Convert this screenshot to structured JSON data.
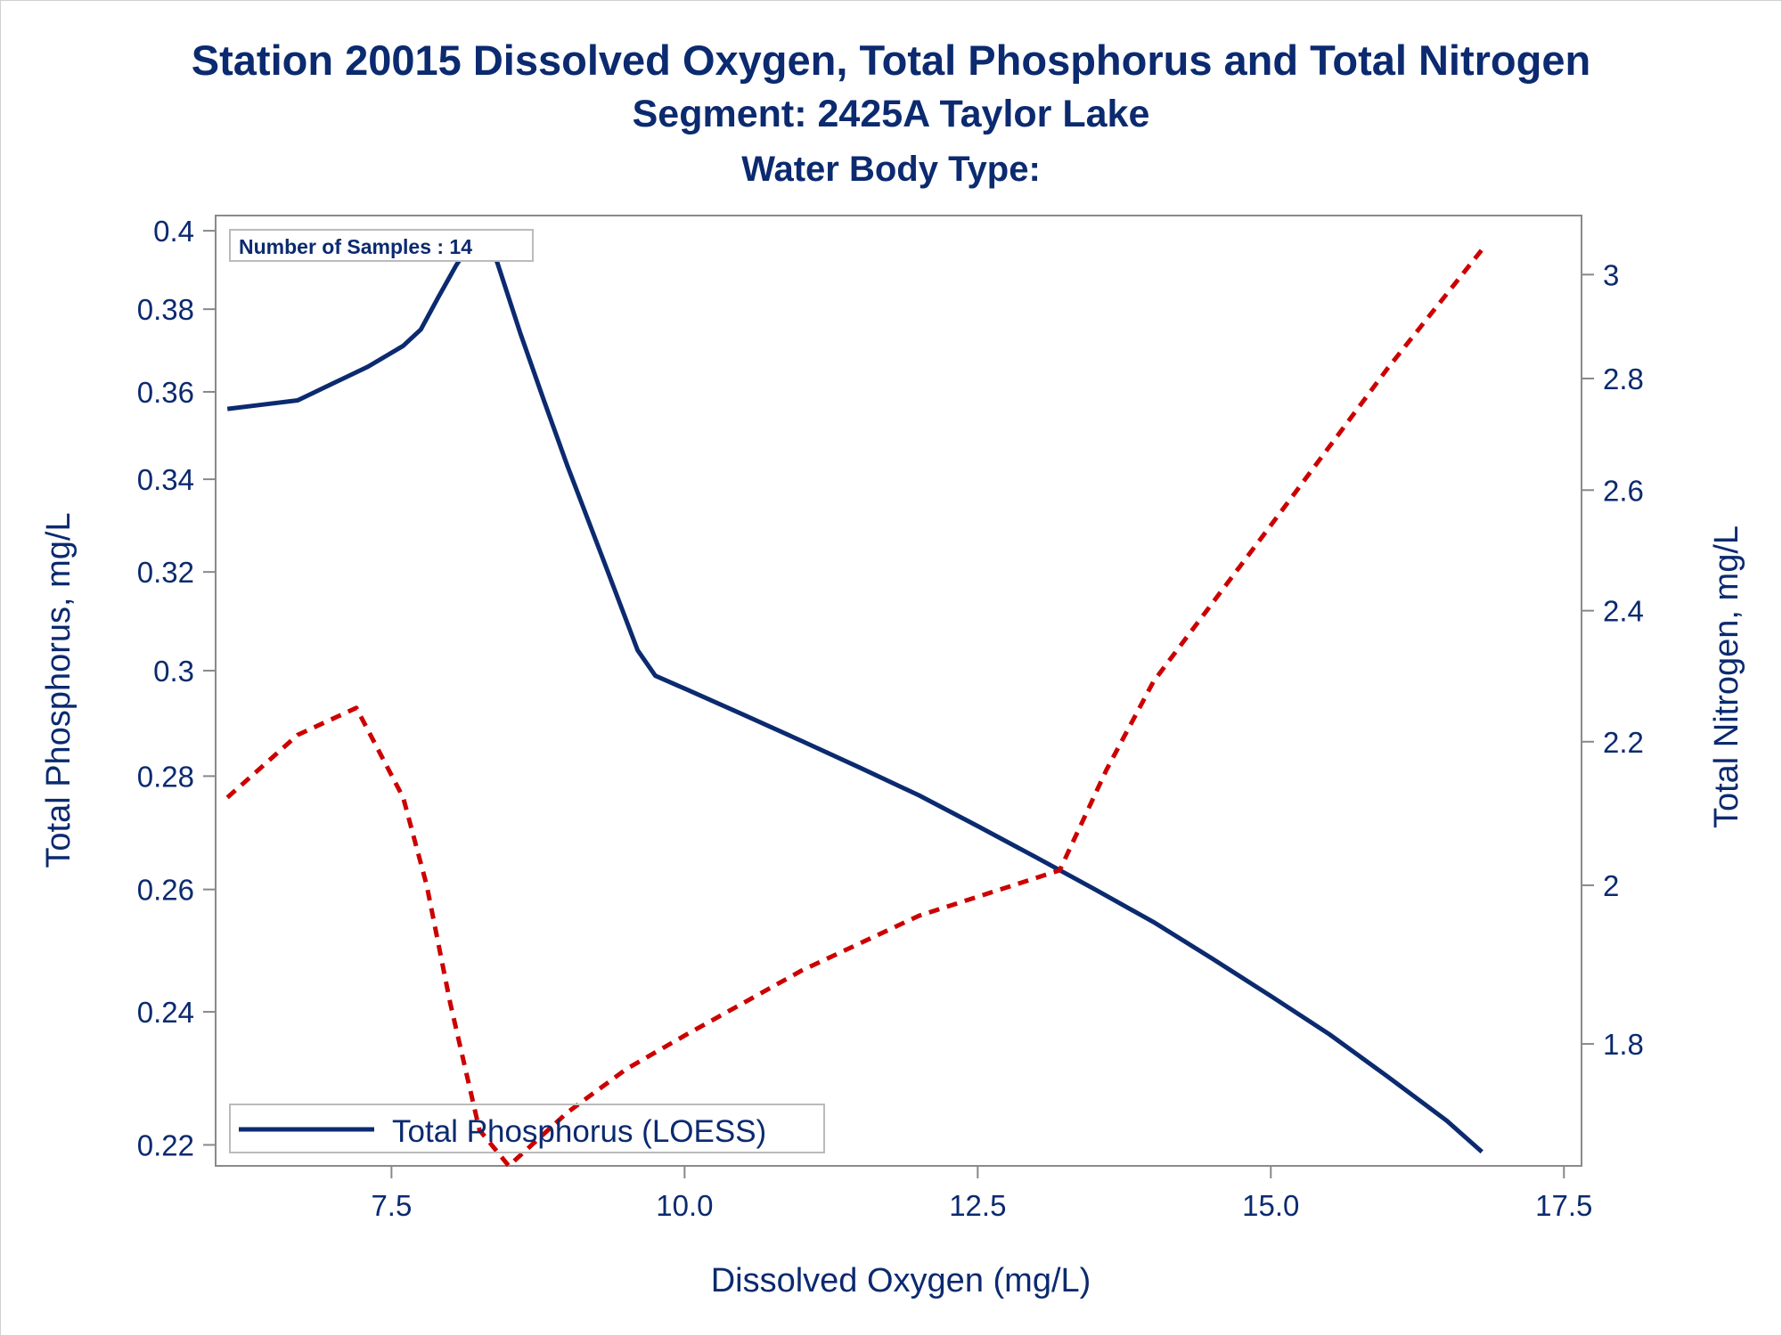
{
  "titles": {
    "line1": "Station 20015  Dissolved Oxygen, Total Phosphorus and Total Nitrogen",
    "line2": "Segment: 2425A  Taylor Lake",
    "line3": "Water Body Type:"
  },
  "inset_label": "Number of Samples : 14",
  "legend": {
    "phosphorus": "Total Phosphorus (LOESS)"
  },
  "colors": {
    "phosphorus": "#0b2a6f",
    "nitrogen": "#cc0000",
    "text": "#0b2a6f",
    "axis": "#888888"
  },
  "chart_data": {
    "type": "line",
    "xlabel": "Dissolved Oxygen (mg/L)",
    "ylabel": "Total Phosphorus, mg/L",
    "y2label": "Total Nitrogen, mg/L",
    "xlim": [
      6.0,
      17.65
    ],
    "ylim": [
      0.217,
      0.404
    ],
    "y2lim": [
      1.66,
      3.12
    ],
    "xticks": [
      7.5,
      10.0,
      12.5,
      15.0,
      17.5
    ],
    "xtick_labels": [
      "7.5",
      "10.0",
      "12.5",
      "15.0",
      "17.5"
    ],
    "yticks": [
      0.22,
      0.24,
      0.26,
      0.28,
      0.3,
      0.32,
      0.34,
      0.36,
      0.38,
      0.4
    ],
    "ytick_labels": [
      "0.22",
      "0.24",
      "0.26",
      "0.28",
      "0.3",
      "0.32",
      "0.34",
      "0.36",
      "0.38",
      "0.4"
    ],
    "y2ticks": [
      1.8,
      2.0,
      2.2,
      2.4,
      2.6,
      2.8,
      3.0
    ],
    "y2tick_labels": [
      "1.8",
      "2",
      "2.2",
      "2.4",
      "2.6",
      "2.8",
      "3"
    ],
    "series": [
      {
        "name": "Total Phosphorus (LOESS)",
        "axis": "left",
        "style": "solid",
        "x": [
          6.1,
          6.4,
          6.7,
          7.0,
          7.3,
          7.6,
          7.75,
          7.9,
          8.05,
          8.2,
          8.3,
          8.4,
          8.6,
          8.8,
          9.0,
          9.3,
          9.6,
          9.75,
          10.0,
          10.5,
          11.0,
          11.5,
          12.0,
          12.5,
          13.0,
          13.5,
          14.0,
          14.5,
          15.0,
          15.5,
          16.0,
          16.5,
          16.8
        ],
        "y": [
          0.356,
          0.357,
          0.358,
          0.362,
          0.366,
          0.371,
          0.375,
          0.383,
          0.391,
          0.398,
          0.396,
          0.392,
          0.374,
          0.358,
          0.343,
          0.323,
          0.304,
          0.299,
          0.2965,
          0.2915,
          0.2865,
          0.2815,
          0.2765,
          0.271,
          0.2655,
          0.26,
          0.2545,
          0.2485,
          0.2425,
          0.2365,
          0.23,
          0.2235,
          0.219
        ]
      },
      {
        "name": "",
        "axis": "right",
        "style": "dashed",
        "x": [
          6.1,
          6.7,
          7.2,
          7.6,
          7.8,
          8.0,
          8.25,
          8.5,
          9.0,
          9.5,
          10.0,
          11.0,
          12.0,
          13.2,
          13.6,
          14.0,
          15.0,
          16.0,
          16.8
        ],
        "y": [
          2.12,
          2.21,
          2.25,
          2.12,
          2.0,
          1.85,
          1.7,
          1.66,
          1.72,
          1.77,
          1.81,
          1.89,
          1.96,
          2.02,
          2.16,
          2.29,
          2.54,
          2.82,
          3.05
        ]
      }
    ]
  }
}
